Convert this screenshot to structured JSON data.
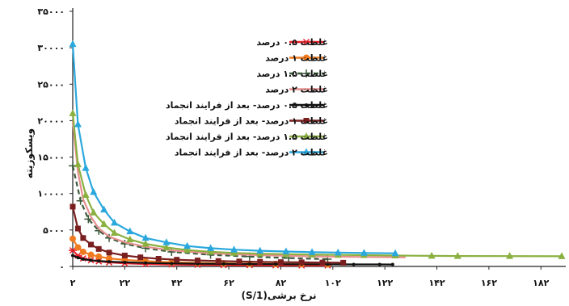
{
  "chart_data": {
    "type": "line",
    "title": "",
    "xlabel": "نرخ برشی(1/S)",
    "ylabel": "ویسکوزیته",
    "xlim": [
      2,
      190
    ],
    "ylim": [
      0,
      35000
    ],
    "grid": false,
    "legend_position": "top-right",
    "x_tick_values": [
      2,
      22,
      42,
      62,
      82,
      102,
      122,
      142,
      162,
      182
    ],
    "x_tick_labels": [
      "۲",
      "۲۲",
      "۴۲",
      "۶۲",
      "۸۲",
      "۱۰۲",
      "۱۲۲",
      "۱۴۲",
      "۱۶۲",
      "۱۸۲"
    ],
    "y_tick_values": [
      0,
      5000,
      10000,
      15000,
      20000,
      25000,
      30000,
      35000
    ],
    "y_tick_labels": [
      "۰",
      "۵۰۰۰",
      "۱۰۰۰۰",
      "۱۵۰۰۰",
      "۲۰۰۰۰",
      "۲۵۰۰۰",
      "۳۰۰۰۰",
      "۳۵۰۰۰"
    ],
    "series": [
      {
        "name": "غلظت ۰.۵ درصد",
        "color": "#e8202a",
        "marker": "asterisk",
        "dash": "",
        "x": [
          2,
          4,
          6,
          9,
          12,
          16,
          22,
          30,
          40,
          50,
          60,
          70,
          80,
          90,
          100
        ],
        "y": [
          2200,
          1500,
          1100,
          850,
          700,
          560,
          430,
          330,
          260,
          220,
          190,
          170,
          150,
          140,
          130
        ]
      },
      {
        "name": "غلظت ۱ درصد",
        "color": "#f07a1f",
        "marker": "circle",
        "dash": "",
        "x": [
          2,
          4,
          6,
          9,
          12,
          16,
          22,
          30,
          40,
          50,
          60,
          70,
          80,
          90,
          100
        ],
        "y": [
          3800,
          2600,
          2000,
          1600,
          1350,
          1100,
          900,
          720,
          580,
          490,
          430,
          380,
          340,
          310,
          290
        ]
      },
      {
        "name": "غلظت ۱.۵ درصد",
        "color": "#3c5a3c",
        "marker": "plus",
        "dash": "6,4",
        "x": [
          2,
          5,
          8,
          12,
          16,
          22,
          30,
          40,
          55,
          70,
          85,
          100
        ],
        "y": [
          13800,
          9000,
          6500,
          4900,
          3900,
          3100,
          2500,
          2000,
          1600,
          1350,
          1150,
          1000
        ]
      },
      {
        "name": "غلظت ۲ درصد",
        "color": "#e88f8f",
        "marker": "",
        "dash": "",
        "x": [
          2,
          4,
          6,
          9,
          12,
          16,
          22,
          30,
          40,
          55,
          70,
          85,
          100,
          115,
          130
        ],
        "y": [
          20000,
          13000,
          9200,
          6800,
          5200,
          4100,
          3300,
          2700,
          2200,
          1800,
          1600,
          1450,
          1350,
          1300,
          1250
        ]
      },
      {
        "name": "غلظت ۰.۵ درصد- بعد از فرایند انجماد",
        "color": "#111111",
        "marker": "dot",
        "dash": "",
        "x": [
          2,
          4,
          6,
          9,
          12,
          16,
          22,
          30,
          40,
          50,
          60,
          70,
          80,
          90,
          100,
          110,
          120,
          125
        ],
        "y": [
          1500,
          1200,
          1000,
          850,
          750,
          650,
          560,
          480,
          420,
          380,
          350,
          330,
          310,
          300,
          290,
          280,
          275,
          270
        ]
      },
      {
        "name": "غلظت ۱ درصد- بعد از فرایند انجماد",
        "color": "#7a1f1f",
        "marker": "square",
        "dash": "",
        "x": [
          2,
          4,
          6,
          9,
          12,
          16,
          22,
          28,
          35,
          42,
          50,
          58,
          66,
          74,
          82,
          90,
          98,
          106
        ],
        "y": [
          8200,
          5200,
          3900,
          3000,
          2400,
          1900,
          1500,
          1250,
          1050,
          920,
          820,
          740,
          680,
          630,
          590,
          560,
          530,
          510
        ]
      },
      {
        "name": "غلظت ۱.۵ درصد- بعد از فرایند انجماد",
        "color": "#8ab040",
        "marker": "triangle",
        "dash": "",
        "x": [
          2,
          4,
          7,
          10,
          14,
          18,
          24,
          30,
          38,
          46,
          55,
          64,
          74,
          84,
          94,
          104,
          114,
          126,
          140,
          150,
          170,
          190
        ],
        "y": [
          21000,
          14000,
          9800,
          7400,
          5800,
          4600,
          3700,
          3100,
          2600,
          2250,
          2000,
          1850,
          1750,
          1680,
          1620,
          1580,
          1550,
          1500,
          1450,
          1430,
          1420,
          1400
        ]
      },
      {
        "name": "غلظت ۲ درصد- بعد از فرایند انجماد",
        "color": "#2aa8dd",
        "marker": "triangle",
        "dash": "",
        "x": [
          2,
          4,
          7,
          10,
          14,
          18,
          24,
          30,
          38,
          46,
          55,
          64,
          74,
          84,
          94,
          104,
          114,
          126
        ],
        "y": [
          30500,
          19500,
          13500,
          10200,
          7800,
          6000,
          4800,
          3900,
          3300,
          2800,
          2500,
          2300,
          2150,
          2050,
          1950,
          1900,
          1850,
          1800
        ]
      }
    ]
  }
}
